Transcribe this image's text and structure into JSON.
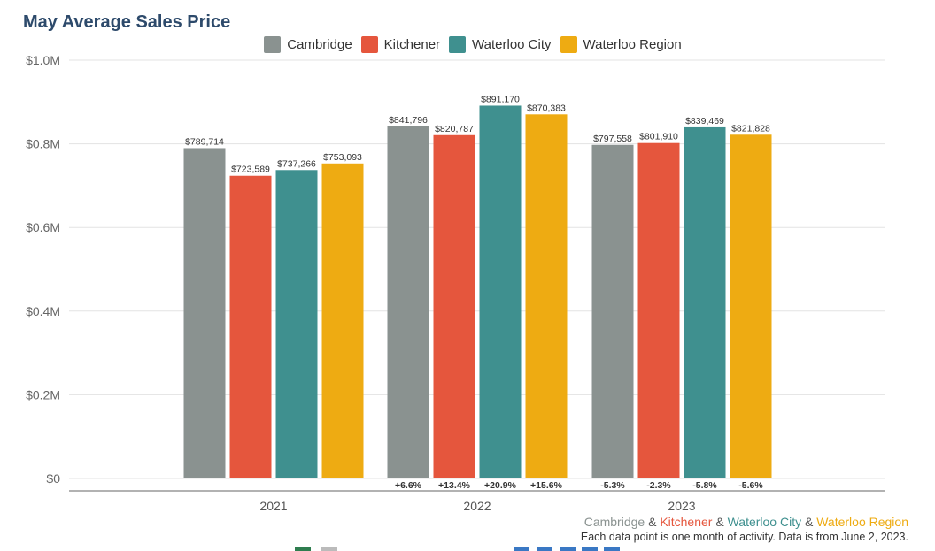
{
  "chart_data": {
    "type": "bar",
    "title": "May Average Sales Price",
    "categories": [
      "2021",
      "2022",
      "2023"
    ],
    "series": [
      {
        "name": "Cambridge",
        "color": "#8a9290",
        "values": [
          789714,
          841796,
          797558
        ],
        "value_labels": [
          "$789,714",
          "$841,796",
          "$797,558"
        ],
        "change_labels": [
          "",
          "+6.6%",
          "-5.3%"
        ]
      },
      {
        "name": "Kitchener",
        "color": "#e5563d",
        "values": [
          723589,
          820787,
          801910
        ],
        "value_labels": [
          "$723,589",
          "$820,787",
          "$801,910"
        ],
        "change_labels": [
          "",
          "+13.4%",
          "-2.3%"
        ]
      },
      {
        "name": "Waterloo City",
        "color": "#3f908f",
        "values": [
          737266,
          891170,
          839469
        ],
        "value_labels": [
          "$737,266",
          "$891,170",
          "$839,469"
        ],
        "change_labels": [
          "",
          "+20.9%",
          "-5.8%"
        ]
      },
      {
        "name": "Waterloo Region",
        "color": "#eeab12",
        "values": [
          753093,
          870383,
          821828
        ],
        "value_labels": [
          "$753,093",
          "$870,383",
          "$821,828"
        ],
        "change_labels": [
          "",
          "+15.6%",
          "-5.6%"
        ]
      }
    ],
    "ylim": [
      0,
      1000000
    ],
    "yticks": [
      0,
      200000,
      400000,
      600000,
      800000,
      1000000
    ],
    "ytick_labels": [
      "$0",
      "$0.2M",
      "$0.4M",
      "$0.6M",
      "$0.8M",
      "$1.0M"
    ],
    "grid": true,
    "legend_position": "top-center"
  },
  "footer": {
    "parts": [
      {
        "text": "Cambridge",
        "color": "#8a9290"
      },
      {
        "text": " & ",
        "color": "#555555"
      },
      {
        "text": "Kitchener",
        "color": "#e5563d"
      },
      {
        "text": " & ",
        "color": "#555555"
      },
      {
        "text": "Waterloo City",
        "color": "#3f908f"
      },
      {
        "text": " & ",
        "color": "#555555"
      },
      {
        "text": "Waterloo Region",
        "color": "#eeab12"
      }
    ],
    "note": "Each data point is one month of activity. Data is from June 2, 2023."
  }
}
